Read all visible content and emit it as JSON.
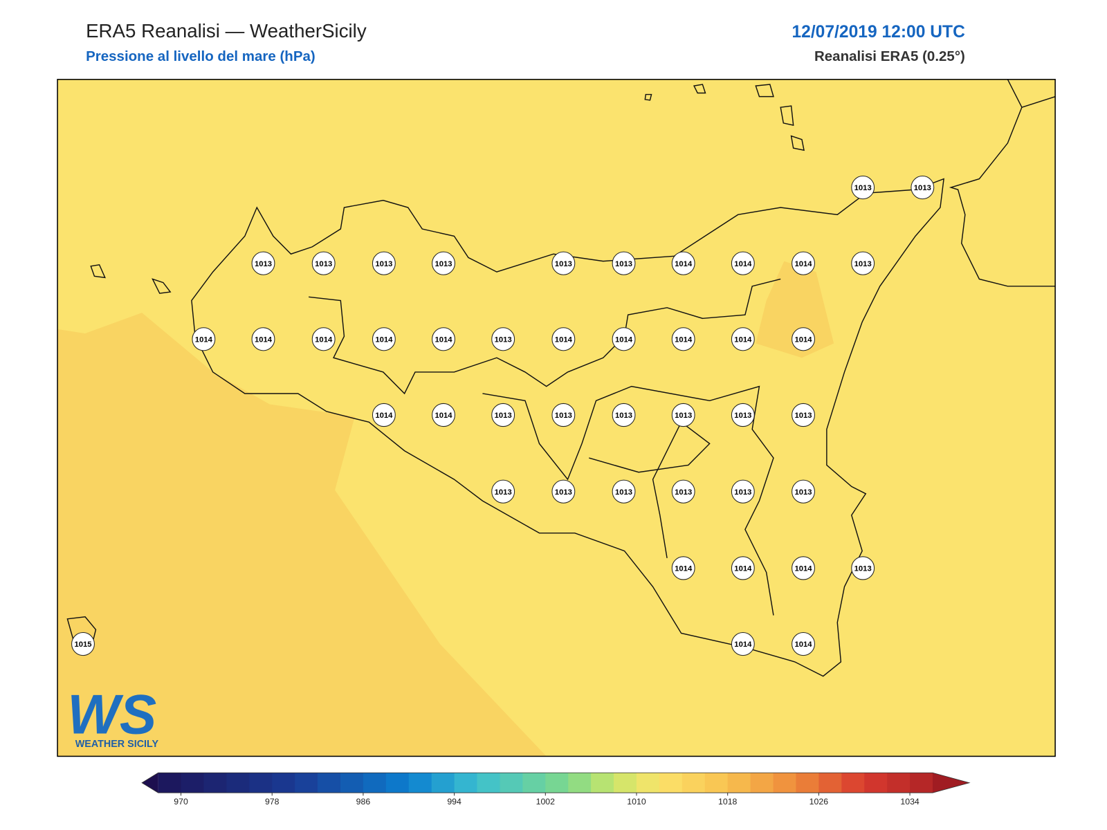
{
  "header": {
    "title": "ERA5 Reanalisi — WeatherSicily",
    "subtitle": "Pressione al livello del mare (hPa)",
    "date": "12/07/2019 12:00 UTC",
    "source": "Reanalisi ERA5 (0.25°)"
  },
  "stations": {
    "values": [
      1013,
      1013,
      1013,
      1013,
      1013,
      1013,
      1013,
      1013,
      1014,
      1014,
      1014,
      1013,
      1014,
      1014,
      1014,
      1014,
      1014,
      1013,
      1014,
      1014,
      1014,
      1014,
      1014,
      1014,
      1014,
      1013,
      1013,
      1013,
      1013,
      1013,
      1013,
      1013,
      1013,
      1013,
      1013,
      1013,
      1013,
      1014,
      1014,
      1014,
      1013,
      1015,
      1014,
      1014
    ]
  },
  "colorbar": {
    "ticks": [
      970,
      978,
      986,
      994,
      1002,
      1010,
      1018,
      1026,
      1034
    ]
  },
  "logo": {
    "mark": "WS",
    "name": "WEATHER SICILY"
  }
}
